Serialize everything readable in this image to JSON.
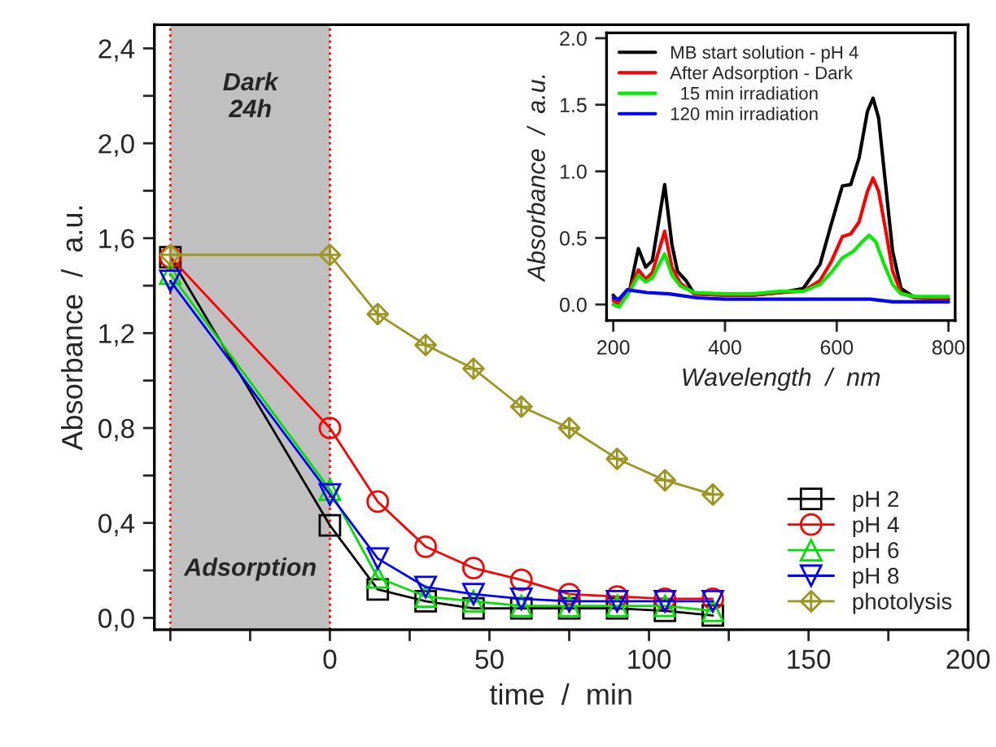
{
  "chart_data": [
    {
      "type": "line",
      "xlabel": "time  /  min",
      "ylabel": "Absorbance  /  a.u.",
      "x": [
        -50,
        0,
        15,
        30,
        45,
        60,
        75,
        90,
        105,
        120
      ],
      "series": [
        {
          "name": "pH 2",
          "color": "#000000",
          "marker": "square",
          "values": [
            1.52,
            0.39,
            0.12,
            0.07,
            0.04,
            0.04,
            0.04,
            0.04,
            0.03,
            0.01
          ]
        },
        {
          "name": "pH 4",
          "color": "#ff0000",
          "marker": "circle",
          "values": [
            1.52,
            0.8,
            0.49,
            0.3,
            0.21,
            0.16,
            0.1,
            0.09,
            0.08,
            0.08
          ]
        },
        {
          "name": "pH 6",
          "color": "#00e000",
          "marker": "triangle",
          "values": [
            1.45,
            0.54,
            0.17,
            0.09,
            0.07,
            0.05,
            0.05,
            0.05,
            0.05,
            0.03
          ]
        },
        {
          "name": "pH 8",
          "color": "#0000ff",
          "marker": "triangle_down",
          "values": [
            1.42,
            0.52,
            0.25,
            0.13,
            0.1,
            0.08,
            0.07,
            0.07,
            0.07,
            0.07
          ]
        },
        {
          "name": "photolysis",
          "color": "#9c9620",
          "marker": "diamond_cross",
          "values": [
            1.53,
            1.53,
            1.28,
            1.15,
            1.05,
            0.89,
            0.8,
            0.67,
            0.58,
            0.52
          ]
        }
      ],
      "xlim": [
        -55,
        200
      ],
      "xticks": [
        {
          "value": -50,
          "label": null
        },
        {
          "value": -25,
          "label": null
        },
        0,
        {
          "value": 25,
          "label": null
        },
        50,
        {
          "value": 75,
          "label": null
        },
        100,
        {
          "value": 125,
          "label": null
        },
        150,
        {
          "value": 175,
          "label": null
        },
        200
      ],
      "ylim": [
        -0.05,
        2.5
      ],
      "yticks": [
        {
          "value": 0,
          "label": "0,0"
        },
        {
          "value": 0.2,
          "label": null
        },
        {
          "value": 0.4,
          "label": "0,4"
        },
        {
          "value": 0.6,
          "label": null
        },
        {
          "value": 0.8,
          "label": "0,8"
        },
        {
          "value": 1.0,
          "label": null
        },
        {
          "value": 1.2,
          "label": "1,2"
        },
        {
          "value": 1.4,
          "label": null
        },
        {
          "value": 1.6,
          "label": "1,6"
        },
        {
          "value": 1.8,
          "label": null
        },
        {
          "value": 2.0,
          "label": "2,0"
        },
        {
          "value": 2.2,
          "label": null
        },
        {
          "value": 2.4,
          "label": "2,4"
        }
      ],
      "bands": [
        {
          "axis": "x",
          "from": -50,
          "to": 0,
          "color": "#c0c0c0"
        }
      ],
      "ref_lines": [
        {
          "axis": "x",
          "value": -50,
          "color": "#ff0000",
          "line_style": "dotted"
        },
        {
          "axis": "x",
          "value": 0,
          "color": "#ff0000",
          "line_style": "dotted"
        }
      ],
      "annotations": [
        "Dark\n24h",
        "Adsorption"
      ],
      "legend": "bottom right",
      "grid": false,
      "line_style": "solid"
    },
    {
      "type": "line",
      "xlabel": "Wavelength  /  nm",
      "ylabel": "Absorbance  /  a.u.",
      "series": [
        {
          "name": "MB start solution - pH 4",
          "color": "#000000",
          "x": [
            200,
            210,
            230,
            245,
            258,
            270,
            292,
            305,
            315,
            330,
            345,
            400,
            450,
            500,
            540,
            570,
            590,
            610,
            625,
            640,
            655,
            665,
            675,
            690,
            700,
            715,
            740,
            800
          ],
          "values": [
            0.07,
            0.02,
            0.12,
            0.42,
            0.28,
            0.33,
            0.9,
            0.45,
            0.25,
            0.18,
            0.08,
            0.07,
            0.07,
            0.09,
            0.12,
            0.3,
            0.6,
            0.89,
            0.9,
            1.1,
            1.45,
            1.55,
            1.4,
            0.8,
            0.4,
            0.12,
            0.05,
            0.04
          ]
        },
        {
          "name": "After Adsorption - Dark",
          "color": "#ff0000",
          "x": [
            200,
            210,
            230,
            245,
            258,
            270,
            292,
            305,
            320,
            345,
            400,
            450,
            500,
            540,
            570,
            590,
            610,
            625,
            640,
            655,
            665,
            675,
            690,
            700,
            715,
            740,
            800
          ],
          "values": [
            0.03,
            0.0,
            0.12,
            0.26,
            0.19,
            0.24,
            0.55,
            0.28,
            0.16,
            0.08,
            0.07,
            0.07,
            0.09,
            0.1,
            0.18,
            0.32,
            0.51,
            0.53,
            0.62,
            0.85,
            0.95,
            0.85,
            0.5,
            0.25,
            0.09,
            0.05,
            0.04
          ]
        },
        {
          "name": "  15 min irradiation",
          "color": "#00ee00",
          "x": [
            200,
            210,
            230,
            245,
            258,
            270,
            292,
            305,
            320,
            345,
            400,
            450,
            500,
            540,
            570,
            590,
            610,
            630,
            645,
            658,
            670,
            685,
            700,
            715,
            740,
            800
          ],
          "values": [
            0.0,
            -0.02,
            0.1,
            0.22,
            0.17,
            0.2,
            0.38,
            0.22,
            0.14,
            0.09,
            0.08,
            0.08,
            0.1,
            0.1,
            0.15,
            0.24,
            0.35,
            0.4,
            0.47,
            0.52,
            0.47,
            0.3,
            0.15,
            0.08,
            0.06,
            0.06
          ]
        },
        {
          "name": "120 min irradiation",
          "color": "#0000ff",
          "x": [
            200,
            210,
            225,
            260,
            300,
            350,
            400,
            500,
            600,
            660,
            700,
            800
          ],
          "values": [
            0.05,
            0.04,
            0.11,
            0.09,
            0.08,
            0.05,
            0.04,
            0.04,
            0.04,
            0.04,
            0.02,
            0.02
          ]
        }
      ],
      "xlim": [
        188,
        812
      ],
      "xticks": [
        200,
        400,
        600,
        800
      ],
      "ylim": [
        -0.12,
        2.04
      ],
      "yticks": [
        {
          "value": 0,
          "label": "0.0"
        },
        {
          "value": 0.5,
          "label": "0.5"
        },
        {
          "value": 1.0,
          "label": "1.0"
        },
        {
          "value": 1.5,
          "label": "1.5"
        },
        {
          "value": 2.0,
          "label": "2.0"
        }
      ],
      "legend": "top left",
      "grid": false,
      "marker": "none",
      "line_style": "solid"
    }
  ]
}
